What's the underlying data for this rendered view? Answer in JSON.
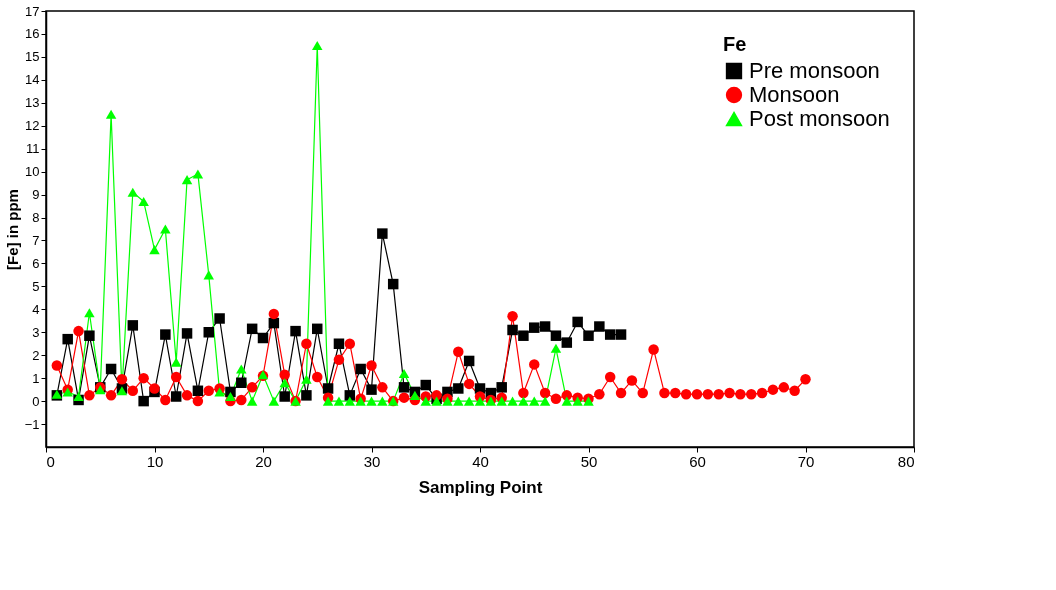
{
  "chart_data": {
    "type": "line",
    "xlabel": "Sampling Point",
    "ylabel": "[Fe] in ppm",
    "legend_title": "Fe",
    "legend": "top right",
    "xlim": [
      0,
      80
    ],
    "xticks": [
      0,
      10,
      20,
      30,
      40,
      50,
      60,
      70,
      80
    ],
    "ylim": [
      -2,
      17
    ],
    "yticks": [
      -1,
      0,
      1,
      2,
      3,
      4,
      5,
      6,
      7,
      8,
      9,
      10,
      11,
      12,
      13,
      14,
      15,
      16,
      17
    ],
    "grid": false,
    "line_style": "solid",
    "series": [
      {
        "name": "Pre monsoon",
        "color": "#000000",
        "marker": "square",
        "x": [
          1,
          2,
          3,
          4,
          5,
          6,
          7,
          8,
          9,
          10,
          11,
          12,
          13,
          14,
          15,
          16,
          17,
          18,
          19,
          20,
          21,
          22,
          23,
          24,
          25,
          26,
          27,
          28,
          29,
          30,
          31,
          32,
          33,
          34,
          35,
          36,
          37,
          38,
          39,
          40,
          41,
          42,
          43,
          44,
          45,
          46,
          47,
          48,
          49,
          50,
          51,
          52,
          53
        ],
        "values": [
          0.25,
          2.7,
          0.05,
          2.85,
          0.6,
          1.4,
          0.55,
          3.3,
          0,
          0.4,
          2.9,
          0.2,
          2.95,
          0.45,
          3.0,
          3.6,
          0.4,
          0.8,
          3.15,
          2.75,
          3.4,
          0.2,
          3.05,
          0.25,
          3.15,
          0.55,
          2.5,
          0.25,
          1.4,
          0.5,
          7.3,
          5.1,
          0.6,
          0.4,
          0.7,
          0.1,
          0.4,
          0.55,
          1.75,
          0.55,
          0.35,
          0.6,
          3.1,
          2.85,
          3.2,
          3.25,
          2.85,
          2.55,
          3.45,
          2.85,
          3.25,
          2.9,
          2.9
        ]
      },
      {
        "name": "Monsoon",
        "color": "#ff0000",
        "marker": "circle",
        "x": [
          1,
          2,
          3,
          4,
          5,
          6,
          7,
          8,
          9,
          10,
          11,
          12,
          13,
          14,
          15,
          16,
          17,
          18,
          19,
          20,
          21,
          22,
          23,
          24,
          25,
          26,
          27,
          28,
          29,
          30,
          31,
          32,
          33,
          34,
          35,
          36,
          37,
          38,
          39,
          40,
          41,
          42,
          43,
          44,
          45,
          46,
          47,
          48,
          49,
          50,
          51,
          52,
          53,
          54,
          55,
          56,
          57,
          58,
          59,
          60,
          61,
          62,
          63,
          64,
          65,
          66,
          67,
          68,
          69,
          70
        ],
        "values": [
          1.55,
          0.5,
          3.05,
          0.25,
          0.6,
          0.25,
          0.95,
          0.45,
          1.0,
          0.55,
          0.05,
          1.05,
          0.25,
          0,
          0.45,
          0.55,
          0,
          0.05,
          0.6,
          1.1,
          3.8,
          1.15,
          0,
          2.5,
          1.05,
          0.15,
          1.8,
          2.5,
          0.1,
          1.55,
          0.6,
          0,
          0.15,
          0.05,
          0.2,
          0.25,
          0.1,
          2.15,
          0.75,
          0.2,
          0.05,
          0.15,
          3.7,
          0.35,
          1.6,
          0.35,
          0.1,
          0.25,
          0.15,
          0.1,
          0.3,
          1.05,
          0.35,
          0.9,
          0.35,
          2.25,
          0.35,
          0.35,
          0.3,
          0.3,
          0.3,
          0.3,
          0.35,
          0.3,
          0.3,
          0.35,
          0.5,
          0.6,
          0.45,
          0.95
        ]
      },
      {
        "name": "Post monsoon",
        "color": "#00ff00",
        "marker": "triangle",
        "x": [
          1,
          2,
          3,
          4,
          5,
          6,
          7,
          8,
          9,
          10,
          11,
          12,
          13,
          14,
          15,
          16,
          17,
          18,
          19,
          20,
          21,
          22,
          23,
          24,
          25,
          26,
          27,
          28,
          29,
          30,
          31,
          32,
          33,
          34,
          35,
          36,
          37,
          38,
          39,
          40,
          41,
          42,
          43,
          44,
          45,
          46,
          47,
          48,
          49,
          50
        ],
        "values": [
          0.3,
          0.4,
          0.2,
          3.85,
          0.5,
          12.5,
          0.45,
          9.1,
          8.7,
          6.6,
          7.5,
          1.7,
          9.65,
          9.9,
          5.5,
          0.4,
          0.2,
          1.4,
          0,
          1.15,
          0,
          0.8,
          0,
          0.95,
          15.5,
          0,
          0,
          0,
          0,
          0,
          0,
          0,
          1.2,
          0.25,
          0,
          0,
          0,
          0,
          0,
          0,
          0,
          0,
          0,
          0,
          0,
          0,
          2.3,
          0,
          0,
          0
        ]
      }
    ]
  }
}
